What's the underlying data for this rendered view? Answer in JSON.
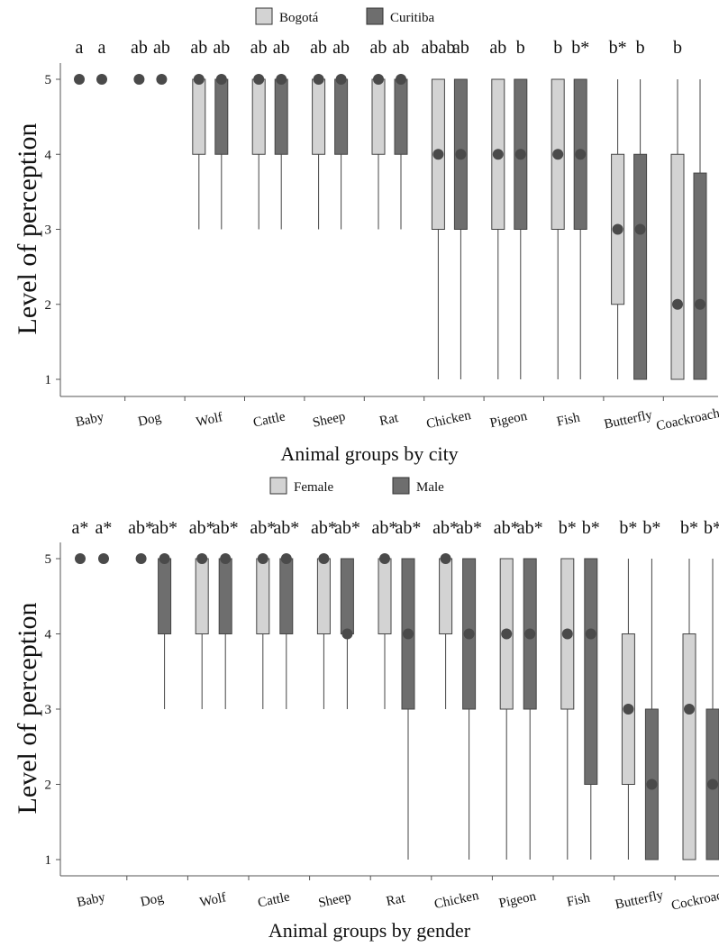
{
  "chart_data": [
    {
      "type": "boxplot",
      "ylabel": "Level of perception",
      "xlabel": "Animal groups by city",
      "ylim": [
        1,
        5
      ],
      "yticks": [
        1,
        2,
        3,
        4,
        5
      ],
      "categories": [
        "Baby",
        "Dog",
        "Wolf",
        "Cattle",
        "Sheep",
        "Rat",
        "Chicken",
        "Pigeon",
        "Fish",
        "Butterfly",
        "Coackroach"
      ],
      "legend": {
        "position": "top-center",
        "entries": [
          "Bogotá",
          "Curitiba"
        ]
      },
      "series": [
        {
          "name": "Bogotá",
          "color": "#d3d3d3",
          "boxes": [
            {
              "min": 5,
              "q1": 5,
              "median": 5,
              "q3": 5,
              "max": 5
            },
            {
              "min": 5,
              "q1": 5,
              "median": 5,
              "q3": 5,
              "max": 5
            },
            {
              "min": 3,
              "q1": 4,
              "median": 5,
              "q3": 5,
              "max": 5
            },
            {
              "min": 3,
              "q1": 4,
              "median": 5,
              "q3": 5,
              "max": 5
            },
            {
              "min": 3,
              "q1": 4,
              "median": 5,
              "q3": 5,
              "max": 5
            },
            {
              "min": 3,
              "q1": 4,
              "median": 5,
              "q3": 5,
              "max": 5
            },
            {
              "min": 1,
              "q1": 3,
              "median": 4,
              "q3": 5,
              "max": 5
            },
            {
              "min": 1,
              "q1": 3,
              "median": 4,
              "q3": 5,
              "max": 5
            },
            {
              "min": 1,
              "q1": 3,
              "median": 4,
              "q3": 5,
              "max": 5
            },
            {
              "min": 1,
              "q1": 2,
              "median": 3,
              "q3": 4,
              "max": 5
            },
            {
              "min": 1,
              "q1": 1,
              "median": 2,
              "q3": 4,
              "max": 5
            }
          ]
        },
        {
          "name": "Curitiba",
          "color": "#6e6e6e",
          "boxes": [
            {
              "min": 5,
              "q1": 5,
              "median": 5,
              "q3": 5,
              "max": 5
            },
            {
              "min": 5,
              "q1": 5,
              "median": 5,
              "q3": 5,
              "max": 5
            },
            {
              "min": 3,
              "q1": 4,
              "median": 5,
              "q3": 5,
              "max": 5
            },
            {
              "min": 3,
              "q1": 4,
              "median": 5,
              "q3": 5,
              "max": 5
            },
            {
              "min": 3,
              "q1": 4,
              "median": 5,
              "q3": 5,
              "max": 5
            },
            {
              "min": 3,
              "q1": 4,
              "median": 5,
              "q3": 5,
              "max": 5
            },
            {
              "min": 1,
              "q1": 3,
              "median": 4,
              "q3": 5,
              "max": 5
            },
            {
              "min": 1,
              "q1": 3,
              "median": 4,
              "q3": 5,
              "max": 5
            },
            {
              "min": 1,
              "q1": 3,
              "median": 4,
              "q3": 5,
              "max": 5
            },
            {
              "min": 1,
              "q1": 1,
              "median": 3,
              "q3": 4,
              "max": 5
            },
            {
              "min": 1,
              "q1": 1,
              "median": 2,
              "q3": 3.75,
              "max": 5
            }
          ]
        }
      ],
      "annotations": [
        "a",
        "a",
        "ab",
        "ab",
        "ab",
        "ab",
        "ab",
        "ab",
        "ab",
        "ab",
        "ab",
        "ab",
        "abab",
        "ab",
        "ab",
        "b",
        "b",
        "b*",
        "b*",
        "b",
        "b"
      ]
    },
    {
      "type": "boxplot",
      "ylabel": "Level of perception",
      "xlabel": "Animal groups by gender",
      "ylim": [
        1,
        5
      ],
      "yticks": [
        1,
        2,
        3,
        4,
        5
      ],
      "categories": [
        "Baby",
        "Dog",
        "Wolf",
        "Cattle",
        "Sheep",
        "Rat",
        "Chicken",
        "Pigeon",
        "Fish",
        "Butterfly",
        "Cockroach"
      ],
      "legend": {
        "position": "top-center",
        "entries": [
          "Female",
          "Male"
        ]
      },
      "series": [
        {
          "name": "Female",
          "color": "#d3d3d3",
          "boxes": [
            {
              "min": 5,
              "q1": 5,
              "median": 5,
              "q3": 5,
              "max": 5
            },
            {
              "min": 5,
              "q1": 5,
              "median": 5,
              "q3": 5,
              "max": 5
            },
            {
              "min": 3,
              "q1": 4,
              "median": 5,
              "q3": 5,
              "max": 5
            },
            {
              "min": 3,
              "q1": 4,
              "median": 5,
              "q3": 5,
              "max": 5
            },
            {
              "min": 3,
              "q1": 4,
              "median": 5,
              "q3": 5,
              "max": 5
            },
            {
              "min": 3,
              "q1": 4,
              "median": 5,
              "q3": 5,
              "max": 5
            },
            {
              "min": 3,
              "q1": 4,
              "median": 5,
              "q3": 5,
              "max": 5
            },
            {
              "min": 1,
              "q1": 3,
              "median": 4,
              "q3": 5,
              "max": 5
            },
            {
              "min": 1,
              "q1": 3,
              "median": 4,
              "q3": 5,
              "max": 5
            },
            {
              "min": 1,
              "q1": 2,
              "median": 3,
              "q3": 4,
              "max": 5
            },
            {
              "min": 1,
              "q1": 1,
              "median": 3,
              "q3": 4,
              "max": 5
            }
          ]
        },
        {
          "name": "Male",
          "color": "#6e6e6e",
          "boxes": [
            {
              "min": 5,
              "q1": 5,
              "median": 5,
              "q3": 5,
              "max": 5
            },
            {
              "min": 3,
              "q1": 4,
              "median": 5,
              "q3": 5,
              "max": 5
            },
            {
              "min": 3,
              "q1": 4,
              "median": 5,
              "q3": 5,
              "max": 5
            },
            {
              "min": 3,
              "q1": 4,
              "median": 5,
              "q3": 5,
              "max": 5
            },
            {
              "min": 3,
              "q1": 4,
              "median": 4,
              "q3": 5,
              "max": 5
            },
            {
              "min": 1,
              "q1": 3,
              "median": 4,
              "q3": 5,
              "max": 5
            },
            {
              "min": 1,
              "q1": 3,
              "median": 4,
              "q3": 5,
              "max": 5
            },
            {
              "min": 1,
              "q1": 3,
              "median": 4,
              "q3": 5,
              "max": 5
            },
            {
              "min": 1,
              "q1": 2,
              "median": 4,
              "q3": 5,
              "max": 5
            },
            {
              "min": 1,
              "q1": 1,
              "median": 2,
              "q3": 3,
              "max": 5
            },
            {
              "min": 1,
              "q1": 1,
              "median": 2,
              "q3": 3,
              "max": 5
            }
          ]
        }
      ],
      "annotations": [
        "a*",
        "a*",
        "ab*",
        "ab*",
        "ab*",
        "ab*",
        "ab*",
        "ab*",
        "ab*",
        "ab*",
        "ab*",
        "ab*",
        "ab*",
        "ab*",
        "ab*",
        "ab*",
        "b*",
        "b*",
        "b*",
        "b*",
        "b*",
        "b*"
      ]
    }
  ]
}
